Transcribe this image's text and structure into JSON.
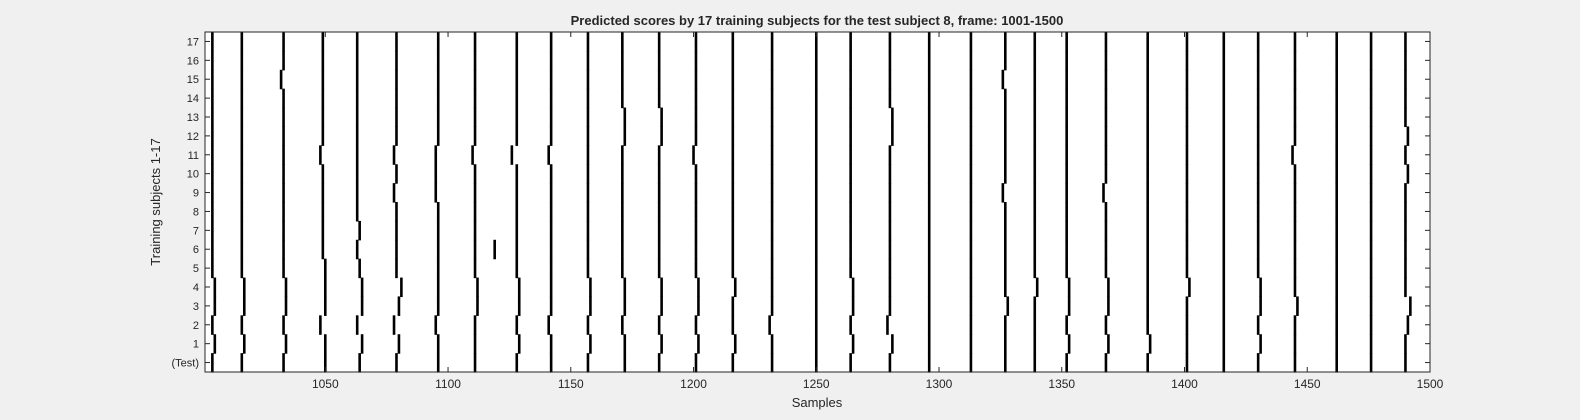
{
  "chart_data": {
    "type": "raster",
    "title": "Predicted scores by 17 training subjects for the test subject 8, frame: 1001-1500",
    "xlabel": "Samples",
    "ylabel": "Training subjects 1-17",
    "xlim": [
      1001,
      1500
    ],
    "xticks": [
      1050,
      1100,
      1150,
      1200,
      1250,
      1300,
      1350,
      1400,
      1450,
      1500
    ],
    "rows": [
      "(Test)",
      "1",
      "2",
      "3",
      "4",
      "5",
      "6",
      "7",
      "8",
      "9",
      "10",
      "11",
      "12",
      "13",
      "14",
      "15",
      "16",
      "17"
    ],
    "base_events": [
      1004,
      1016,
      1033,
      1049,
      1064,
      1079,
      1096,
      1111,
      1128,
      1142,
      1157,
      1171,
      1186,
      1201,
      1216,
      1232,
      1250,
      1264,
      1280,
      1296,
      1313,
      1327,
      1339,
      1352,
      1368,
      1385,
      1401,
      1416,
      1430,
      1445,
      1462,
      1476,
      1490
    ],
    "events": [
      [
        1004,
        1016,
        1033,
        1050,
        1064,
        1079,
        1096,
        1111,
        1128,
        1142,
        1157,
        1172,
        1186,
        1201,
        1216,
        1232,
        1250,
        1264,
        1280,
        1296,
        1313,
        1327,
        1339,
        1352,
        1368,
        1385,
        1401,
        1416,
        1430,
        1445,
        1462,
        1476,
        1490
      ],
      [
        1005,
        1017,
        1034,
        1050,
        1065,
        1080,
        1096,
        1111,
        1129,
        1142,
        1158,
        1172,
        1187,
        1202,
        1217,
        1232,
        1250,
        1265,
        1281,
        1296,
        1313,
        1327,
        1339,
        1353,
        1369,
        1386,
        1401,
        1416,
        1431,
        1445,
        1462,
        1476,
        1490
      ],
      [
        1004,
        1016,
        1033,
        1048,
        1063,
        1078,
        1095,
        1111,
        1128,
        1141,
        1157,
        1171,
        1186,
        1201,
        1216,
        1231,
        1250,
        1264,
        1279,
        1296,
        1313,
        1327,
        1339,
        1352,
        1368,
        1385,
        1401,
        1416,
        1430,
        1445,
        1462,
        1476,
        1491
      ],
      [
        1005,
        1017,
        1034,
        1050,
        1065,
        1080,
        1096,
        1112,
        1129,
        1142,
        1158,
        1172,
        1187,
        1202,
        1216,
        1232,
        1250,
        1265,
        1280,
        1296,
        1313,
        1328,
        1339,
        1353,
        1369,
        1385,
        1401,
        1416,
        1431,
        1446,
        1462,
        1476,
        1492
      ],
      [
        1005,
        1017,
        1034,
        1050,
        1065,
        1081,
        1096,
        1112,
        1129,
        1142,
        1158,
        1172,
        1187,
        1202,
        1217,
        1232,
        1250,
        1265,
        1280,
        1296,
        1313,
        1327,
        1340,
        1353,
        1369,
        1385,
        1402,
        1416,
        1431,
        1445,
        1462,
        1476,
        1490
      ],
      [
        1004,
        1016,
        1033,
        1050,
        1064,
        1079,
        1096,
        1111,
        1128,
        1142,
        1157,
        1171,
        1186,
        1201,
        1216,
        1232,
        1250,
        1264,
        1280,
        1296,
        1313,
        1327,
        1339,
        1352,
        1368,
        1385,
        1401,
        1416,
        1430,
        1445,
        1462,
        1476,
        1490
      ],
      [
        1004,
        1016,
        1033,
        1049,
        1063,
        1079,
        1096,
        1111,
        1119,
        1128,
        1142,
        1157,
        1171,
        1186,
        1201,
        1216,
        1232,
        1250,
        1264,
        1280,
        1296,
        1313,
        1327,
        1339,
        1352,
        1368,
        1385,
        1401,
        1416,
        1430,
        1445,
        1462,
        1476,
        1490
      ],
      [
        1004,
        1016,
        1033,
        1049,
        1064,
        1079,
        1096,
        1111,
        1128,
        1142,
        1157,
        1171,
        1186,
        1201,
        1216,
        1232,
        1250,
        1264,
        1280,
        1296,
        1313,
        1327,
        1339,
        1352,
        1368,
        1385,
        1401,
        1416,
        1430,
        1445,
        1462,
        1476,
        1490
      ],
      [
        1004,
        1016,
        1033,
        1049,
        1063,
        1079,
        1096,
        1111,
        1128,
        1142,
        1157,
        1171,
        1186,
        1201,
        1216,
        1232,
        1250,
        1264,
        1280,
        1296,
        1313,
        1327,
        1339,
        1352,
        1368,
        1385,
        1401,
        1416,
        1430,
        1445,
        1462,
        1476,
        1490
      ],
      [
        1004,
        1016,
        1033,
        1049,
        1063,
        1078,
        1095,
        1111,
        1128,
        1142,
        1157,
        1171,
        1186,
        1201,
        1216,
        1232,
        1250,
        1264,
        1280,
        1296,
        1313,
        1326,
        1339,
        1352,
        1367,
        1385,
        1401,
        1416,
        1430,
        1445,
        1462,
        1476,
        1490
      ],
      [
        1004,
        1016,
        1033,
        1049,
        1063,
        1079,
        1095,
        1111,
        1128,
        1142,
        1157,
        1171,
        1186,
        1201,
        1216,
        1232,
        1250,
        1264,
        1280,
        1296,
        1313,
        1327,
        1339,
        1352,
        1368,
        1385,
        1401,
        1416,
        1430,
        1445,
        1462,
        1476,
        1491
      ],
      [
        1004,
        1016,
        1033,
        1048,
        1063,
        1078,
        1095,
        1110,
        1126,
        1141,
        1157,
        1171,
        1186,
        1200,
        1216,
        1232,
        1250,
        1264,
        1280,
        1296,
        1313,
        1327,
        1339,
        1352,
        1368,
        1385,
        1401,
        1416,
        1430,
        1444,
        1462,
        1476,
        1490
      ],
      [
        1004,
        1016,
        1033,
        1049,
        1063,
        1079,
        1096,
        1111,
        1128,
        1142,
        1157,
        1172,
        1187,
        1201,
        1216,
        1232,
        1250,
        1264,
        1281,
        1296,
        1313,
        1327,
        1339,
        1352,
        1368,
        1385,
        1401,
        1416,
        1430,
        1445,
        1462,
        1476,
        1491
      ],
      [
        1004,
        1016,
        1033,
        1049,
        1063,
        1079,
        1096,
        1111,
        1128,
        1142,
        1157,
        1172,
        1187,
        1201,
        1216,
        1232,
        1250,
        1264,
        1281,
        1296,
        1313,
        1327,
        1339,
        1352,
        1368,
        1385,
        1401,
        1416,
        1430,
        1445,
        1462,
        1476,
        1490
      ],
      [
        1004,
        1016,
        1033,
        1049,
        1063,
        1079,
        1096,
        1111,
        1128,
        1142,
        1157,
        1171,
        1186,
        1201,
        1216,
        1232,
        1250,
        1264,
        1280,
        1296,
        1313,
        1327,
        1339,
        1352,
        1368,
        1385,
        1401,
        1416,
        1430,
        1445,
        1462,
        1476,
        1490
      ],
      [
        1004,
        1016,
        1032,
        1049,
        1063,
        1079,
        1096,
        1111,
        1128,
        1142,
        1157,
        1171,
        1186,
        1201,
        1216,
        1232,
        1250,
        1264,
        1280,
        1296,
        1313,
        1326,
        1339,
        1352,
        1368,
        1385,
        1401,
        1416,
        1430,
        1445,
        1462,
        1476,
        1490
      ],
      [
        1004,
        1016,
        1033,
        1049,
        1063,
        1079,
        1096,
        1111,
        1128,
        1142,
        1157,
        1171,
        1186,
        1201,
        1216,
        1232,
        1250,
        1264,
        1280,
        1296,
        1313,
        1327,
        1339,
        1352,
        1368,
        1385,
        1401,
        1416,
        1430,
        1445,
        1462,
        1476,
        1490
      ],
      [
        1004,
        1016,
        1033,
        1049,
        1063,
        1079,
        1096,
        1111,
        1128,
        1142,
        1157,
        1171,
        1186,
        1201,
        1216,
        1232,
        1250,
        1264,
        1280,
        1296,
        1313,
        1327,
        1339,
        1352,
        1368,
        1385,
        1401,
        1416,
        1430,
        1445,
        1462,
        1476,
        1490
      ]
    ]
  },
  "colors": {
    "figure_background": "#f0f0f0",
    "axes_background": "#ffffff",
    "axis_color": "#262626",
    "mark_color": "#000000"
  }
}
